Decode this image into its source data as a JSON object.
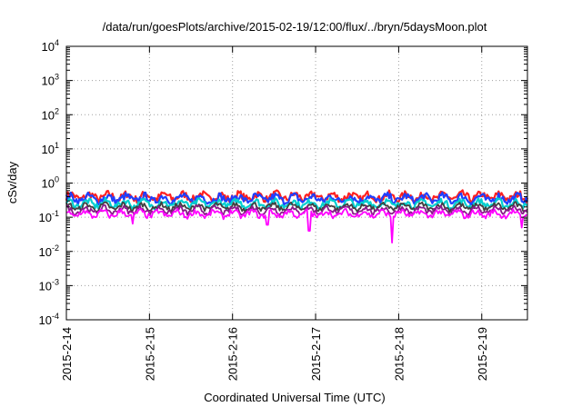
{
  "chart_data": {
    "type": "line",
    "title": "/data/run/goesPlots/archive/2015-02-19/12:00/flux/../bryn/5daysMoon.plot",
    "xlabel": "Coordinated Universal Time (UTC)",
    "ylabel": "cSv/day",
    "yscale": "log",
    "ylim": [
      0.0001,
      10000
    ],
    "xlim": [
      0,
      5.55
    ],
    "grid": true,
    "y_ticks": [
      {
        "value": 0.0001,
        "base": "10",
        "exp": "-4"
      },
      {
        "value": 0.001,
        "base": "10",
        "exp": "-3"
      },
      {
        "value": 0.01,
        "base": "10",
        "exp": "-2"
      },
      {
        "value": 0.1,
        "base": "10",
        "exp": "-1"
      },
      {
        "value": 1,
        "base": "10",
        "exp": "0"
      },
      {
        "value": 10,
        "base": "10",
        "exp": "1"
      },
      {
        "value": 100,
        "base": "10",
        "exp": "2"
      },
      {
        "value": 1000,
        "base": "10",
        "exp": "3"
      },
      {
        "value": 10000,
        "base": "10",
        "exp": "4"
      }
    ],
    "x_ticks": [
      {
        "value": 0,
        "label": "2015-2-14"
      },
      {
        "value": 1,
        "label": "2015-2-15"
      },
      {
        "value": 2,
        "label": "2015-2-16"
      },
      {
        "value": 3,
        "label": "2015-2-17"
      },
      {
        "value": 4,
        "label": "2015-2-18"
      },
      {
        "value": 5,
        "label": "2015-2-19"
      }
    ],
    "series": [
      {
        "color": "#ff2020",
        "base": 0.4,
        "amp": 0.22,
        "phase": 0.0
      },
      {
        "color": "#1f3fff",
        "base": 0.35,
        "amp": 0.22,
        "phase": 0.3
      },
      {
        "color": "#00cfcf",
        "base": 0.25,
        "amp": 0.18,
        "phase": 0.7
      },
      {
        "color": "#404040",
        "base": 0.2,
        "amp": 0.15,
        "phase": 1.1
      },
      {
        "color": "#8a1a8a",
        "base": 0.16,
        "amp": 0.15,
        "phase": 1.5
      },
      {
        "color": "#ff00ff",
        "base": 0.125,
        "amp": 0.16,
        "phase": 1.9,
        "dips": [
          [
            0.8,
            0.065
          ],
          [
            2.42,
            0.06
          ],
          [
            2.92,
            0.04
          ],
          [
            3.92,
            0.018
          ],
          [
            5.48,
            0.05
          ]
        ]
      }
    ]
  }
}
